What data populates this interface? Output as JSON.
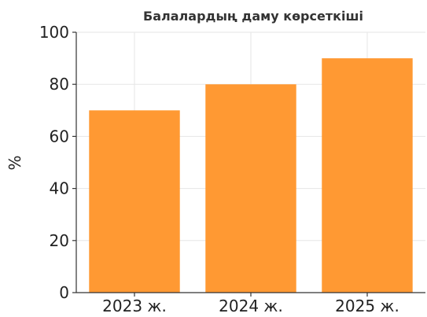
{
  "chart_data": {
    "type": "bar",
    "title": "Балалардың даму көрсеткіші",
    "xlabel": "",
    "ylabel": "%",
    "categories": [
      "2023 ж.",
      "2024 ж.",
      "2025 ж."
    ],
    "values": [
      70,
      80,
      90
    ],
    "ylim": [
      0,
      100
    ],
    "yticks": [
      0,
      20,
      40,
      60,
      80,
      100
    ],
    "grid": true,
    "legend": "none",
    "bar_color": "#ff9933",
    "grid_color": "#e6e6e6",
    "axis_color": "#333333"
  }
}
